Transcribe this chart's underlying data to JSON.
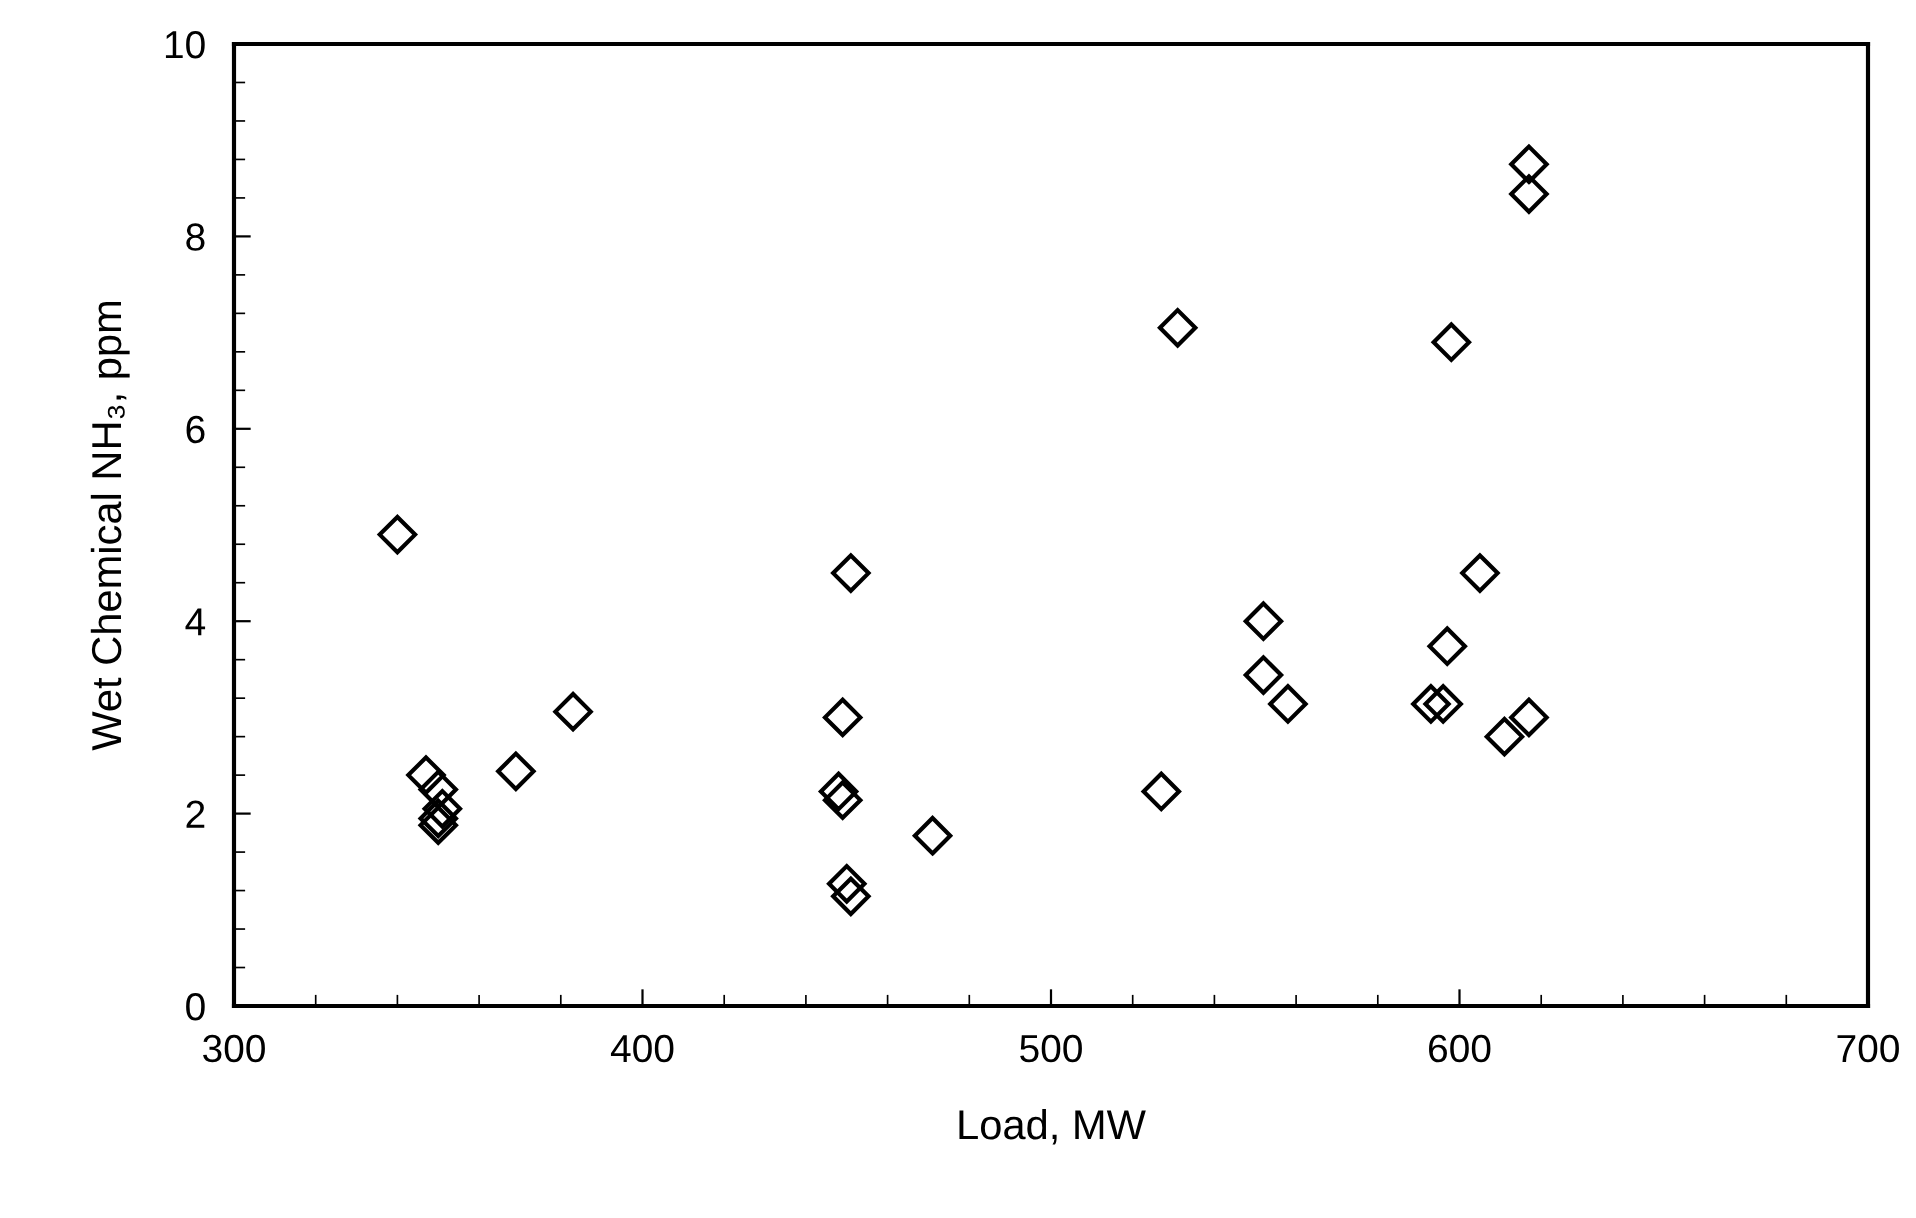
{
  "chart_data": {
    "type": "scatter",
    "xlabel": "Load, MW",
    "ylabel": "Wet Chemical NH₃, ppm",
    "xlim": [
      300,
      700
    ],
    "xticks": [
      300,
      400,
      500,
      600,
      700
    ],
    "ylim": [
      0,
      10
    ],
    "yticks": [
      0,
      2,
      4,
      6,
      8,
      10
    ],
    "grid": false,
    "marker": "diamond",
    "series": [
      {
        "color": "#000000",
        "x": [
          340,
          347,
          350,
          351,
          350,
          350,
          369,
          383,
          451,
          449,
          448,
          449,
          471,
          450,
          451,
          531,
          598,
          605,
          552,
          552,
          558,
          527,
          597,
          593,
          596,
          611,
          617,
          617,
          617
        ],
        "values": [
          4.9,
          2.4,
          2.25,
          2.05,
          1.95,
          1.88,
          2.44,
          3.06,
          4.5,
          3.0,
          2.23,
          2.14,
          1.77,
          1.27,
          1.14,
          7.05,
          6.9,
          4.5,
          4.0,
          3.44,
          3.14,
          2.23,
          3.74,
          3.14,
          3.14,
          2.8,
          3.0,
          8.75,
          8.44
        ]
      }
    ]
  }
}
